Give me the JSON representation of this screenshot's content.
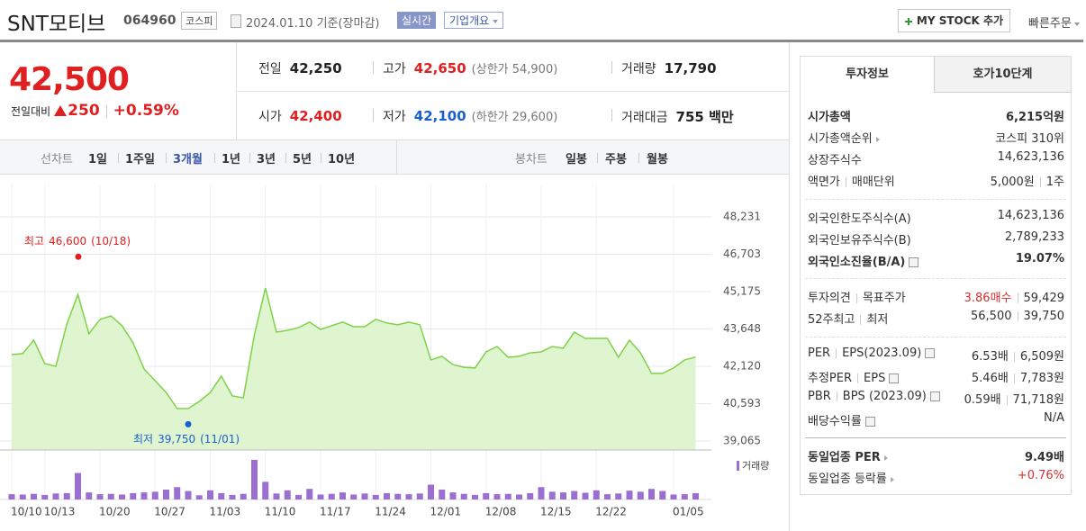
{
  "header": {
    "name": "SNT모티브",
    "code": "064960",
    "market": "코스피",
    "date": "2024.01.10 기준(장마감)",
    "realtime": "실시간",
    "company": "기업개요",
    "mystock": "MY STOCK 추가",
    "quick_order": "빠른주문"
  },
  "quote": {
    "price": "42,500",
    "change_label": "전일대비",
    "change": "250",
    "change_pct": "+0.59%",
    "stats": [
      {
        "label": "전일",
        "value": "42,250",
        "color": "#222"
      },
      {
        "label": "고가",
        "value": "42,650",
        "note": "(상한가 54,900)",
        "color": "#e02020"
      },
      {
        "label": "거래량",
        "value": "17,790",
        "color": "#222"
      },
      {
        "label": "시가",
        "value": "42,400",
        "color": "#e02020"
      },
      {
        "label": "저가",
        "value": "42,100",
        "note": "(하한가 29,600)",
        "color": "#1a5fd0"
      },
      {
        "label": "거래대금",
        "value": "755 백만",
        "color": "#222"
      }
    ]
  },
  "chart_tabs": {
    "line_chart": {
      "label": "선차트",
      "options": [
        "1일",
        "1주일",
        "3개월",
        "1년",
        "3년",
        "5년",
        "10년"
      ],
      "active": 2
    },
    "candle_chart": {
      "label": "봉차트",
      "options": [
        "일봉",
        "주봉",
        "월봉"
      ]
    }
  },
  "chart_data": {
    "type": "area",
    "categories": [
      "10/10",
      null,
      null,
      "10/13",
      null,
      null,
      null,
      null,
      "10/20",
      null,
      null,
      null,
      null,
      "10/27",
      null,
      null,
      null,
      null,
      "11/03",
      null,
      null,
      null,
      null,
      "11/10",
      null,
      null,
      null,
      null,
      "11/17",
      null,
      null,
      null,
      null,
      "11/24",
      null,
      null,
      null,
      null,
      "12/01",
      null,
      null,
      null,
      null,
      "12/08",
      null,
      null,
      null,
      null,
      "12/15",
      null,
      null,
      null,
      null,
      "12/22",
      null,
      null,
      null,
      null,
      null,
      null,
      "01/05",
      null,
      null
    ],
    "series": [
      {
        "color": "#7fd14a",
        "fill": "#dff5cf",
        "values": [
          42600,
          42640,
          43190,
          42230,
          42120,
          43850,
          45060,
          43450,
          44040,
          44180,
          43780,
          43080,
          42010,
          41530,
          41050,
          40390,
          40390,
          40680,
          41050,
          41720,
          40910,
          40830,
          43410,
          45320,
          43520,
          43590,
          43700,
          43930,
          43630,
          43780,
          43930,
          43740,
          43740,
          44040,
          43890,
          43820,
          43930,
          43820,
          42380,
          42530,
          42190,
          42080,
          42050,
          42710,
          42930,
          42490,
          42530,
          42670,
          42710,
          42930,
          42860,
          43520,
          43260,
          43260,
          43260,
          42490,
          43190,
          42670,
          41830,
          41830,
          42050,
          42380,
          42500
        ]
      },
      {
        "name": "거래량",
        "color": "#9b6fd1",
        "axis": "y2",
        "values": [
          15000,
          14000,
          16000,
          13000,
          17000,
          18000,
          75000,
          20000,
          15000,
          16000,
          14000,
          18000,
          20000,
          22000,
          28000,
          35000,
          24000,
          12000,
          26000,
          18000,
          13000,
          16000,
          112000,
          50000,
          17000,
          26000,
          13000,
          30000,
          14000,
          16000,
          20000,
          14000,
          17000,
          13000,
          18000,
          16000,
          15000,
          17000,
          42000,
          28000,
          20000,
          16000,
          13000,
          18000,
          15000,
          16000,
          14000,
          18000,
          35000,
          22000,
          20000,
          24000,
          19000,
          26000,
          15000,
          17000,
          25000,
          22000,
          30000,
          24000,
          14000,
          15000,
          17790
        ]
      }
    ],
    "ylim": [
      38697,
      49556
    ],
    "yticks": [
      {
        "value": 48231,
        "label": "48,231"
      },
      {
        "value": 46703,
        "label": "46,703"
      },
      {
        "value": 45175,
        "label": "45,175"
      },
      {
        "value": 43648,
        "label": "43,648"
      },
      {
        "value": 42120,
        "label": "42,120"
      },
      {
        "value": 40593,
        "label": "40,593"
      },
      {
        "value": 39065,
        "label": "39,065"
      }
    ],
    "grid": true,
    "annotations": [
      {
        "label": "최고",
        "value": 46600,
        "value_label": "46,600",
        "date": "(10/18)",
        "color": "#e02020"
      },
      {
        "label": "최저",
        "value": 39750,
        "value_label": "39,750",
        "date": "(11/01)",
        "color": "#1a5fd0"
      }
    ]
  },
  "info_panel": {
    "tabs": [
      "투자정보",
      "호가10단계"
    ],
    "sections": [
      {
        "rows": [
          {
            "label": [
              "시가총액"
            ],
            "value": [
              "6,215억원"
            ],
            "bold": true
          },
          {
            "label": [
              "시가총액순위"
            ],
            "value": [
              "코스피 310위"
            ],
            "link": true
          },
          {
            "label": [
              "상장주식수"
            ],
            "value": [
              "14,623,136"
            ]
          },
          {
            "label": [
              "액면가",
              "매매단위"
            ],
            "value": [
              "5,000원",
              "1주"
            ]
          }
        ]
      },
      {
        "rows": [
          {
            "label": [
              "외국인한도주식수(A)"
            ],
            "value": [
              "14,623,136"
            ]
          },
          {
            "label": [
              "외국인보유주식수(B)"
            ],
            "value": [
              "2,789,233"
            ]
          },
          {
            "label": [
              "외국인소진율(B/A)"
            ],
            "value": [
              "19.07%"
            ],
            "bold": true,
            "help": true
          }
        ]
      },
      {
        "rows": [
          {
            "label": [
              "투자의견",
              "목표주가"
            ],
            "value": [
              "3.86매수",
              "59,429"
            ],
            "red": true
          },
          {
            "label": [
              "52주최고",
              "최저"
            ],
            "value": [
              "56,500",
              "39,750"
            ]
          }
        ]
      },
      {
        "rows": [
          {
            "label": [
              "PER",
              "EPS(2023.09)"
            ],
            "value": [
              "6.53배",
              "6,509원"
            ],
            "help": true
          },
          {
            "label": [
              "추정PER",
              "EPS"
            ],
            "value": [
              "5.46배",
              "7,783원"
            ],
            "help": true
          },
          {
            "label": [
              "PBR",
              "BPS (2023.09)"
            ],
            "value": [
              "0.59배",
              "71,718원"
            ],
            "help": true
          },
          {
            "label": [
              "배당수익률"
            ],
            "value": [
              "N/A"
            ],
            "help": true
          }
        ]
      },
      {
        "rows": [
          {
            "label": [
              "동일업종 PER"
            ],
            "value": [
              "9.49배"
            ],
            "bold": true,
            "link": true
          },
          {
            "label": [
              "동일업종 등락률"
            ],
            "value": [
              "+0.76%"
            ],
            "red": true,
            "link": true
          }
        ]
      }
    ]
  }
}
